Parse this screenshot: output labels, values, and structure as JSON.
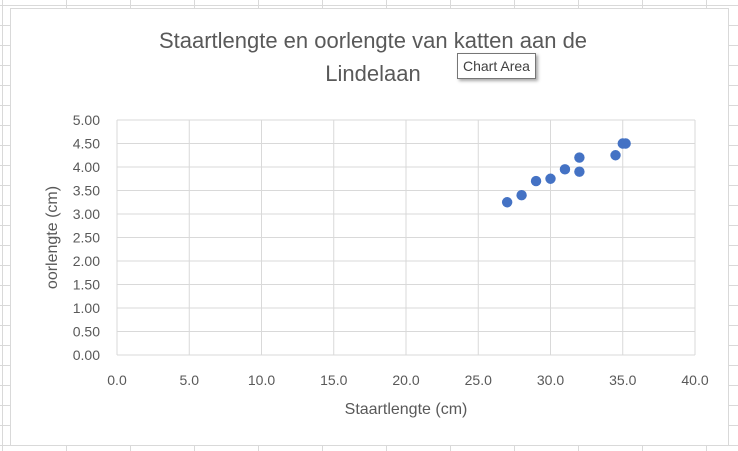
{
  "tooltip": "Chart Area",
  "chart_data": {
    "type": "scatter",
    "title": "Staartlengte en oorlengte van katten aan de\nLindelaan",
    "xlabel": "Staartlengte (cm)",
    "ylabel": "oorlengte (cm)",
    "xlim": [
      0,
      40
    ],
    "ylim": [
      0,
      5
    ],
    "x_ticks": [
      "0.0",
      "5.0",
      "10.0",
      "15.0",
      "20.0",
      "25.0",
      "30.0",
      "35.0",
      "40.0"
    ],
    "y_ticks": [
      "0.00",
      "0.50",
      "1.00",
      "1.50",
      "2.00",
      "2.50",
      "3.00",
      "3.50",
      "4.00",
      "4.50",
      "5.00"
    ],
    "grid": true,
    "marker_color": "#4472c4",
    "points": [
      {
        "x": 27,
        "y": 3.25
      },
      {
        "x": 28,
        "y": 3.4
      },
      {
        "x": 29,
        "y": 3.7
      },
      {
        "x": 30,
        "y": 3.75
      },
      {
        "x": 31,
        "y": 3.95
      },
      {
        "x": 32,
        "y": 3.9
      },
      {
        "x": 32,
        "y": 4.2
      },
      {
        "x": 34.5,
        "y": 4.25
      },
      {
        "x": 35,
        "y": 4.5
      },
      {
        "x": 35.2,
        "y": 4.5
      }
    ]
  }
}
